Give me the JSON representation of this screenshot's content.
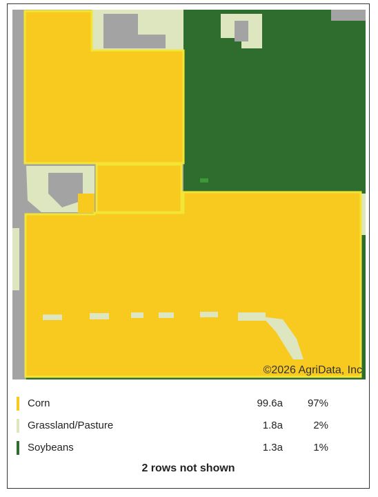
{
  "map": {
    "copyright": "©2026 AgriData, Inc"
  },
  "legend": {
    "rows": [
      {
        "name": "Corn",
        "acres": "99.6a",
        "percent": "97%"
      },
      {
        "name": "Grassland/Pasture",
        "acres": "1.8a",
        "percent": "2%"
      },
      {
        "name": "Soybeans",
        "acres": "1.3a",
        "percent": "1%"
      }
    ],
    "footer": "2 rows not shown"
  }
}
